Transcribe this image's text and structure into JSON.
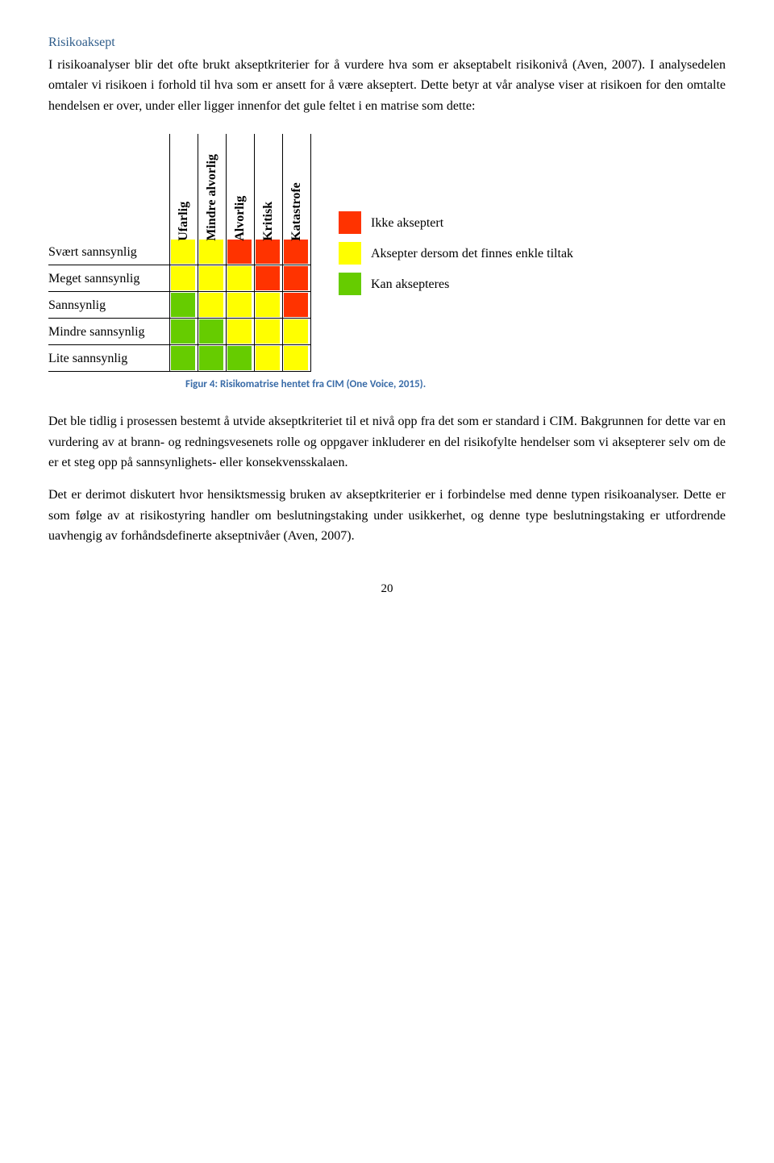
{
  "heading": "Risikoaksept",
  "paragraphs": {
    "p1": "I risikoanalyser blir det ofte brukt akseptkriterier for å vurdere hva som er akseptabelt risikonivå (Aven, 2007). I analysedelen omtaler vi risikoen i forhold til hva som er ansett for å være akseptert. Dette betyr at vår analyse viser at risikoen for den omtalte hendelsen er over, under eller ligger innenfor det gule feltet i en matrise som dette:",
    "p2": "Det ble tidlig i prosessen bestemt å utvide akseptkriteriet til et nivå opp fra det som er standard i CIM. Bakgrunnen for dette var en vurdering av at brann- og redningsvesenets rolle og oppgaver inkluderer en del risikofylte hendelser som vi aksepterer selv om de er et steg opp på sannsynlighets- eller konsekvensskalaen.",
    "p3": "Det er derimot diskutert hvor hensiktsmessig bruken av akseptkriterier er i forbindelse med denne typen risikoanalyser. Dette er som følge av at risikostyring handler om beslutningstaking under usikkerhet, og denne type beslutningstaking er utfordrende uavhengig av forhåndsdefinerte akseptnivåer (Aven, 2007)."
  },
  "matrix": {
    "colors": {
      "red": "#ff3300",
      "yellow": "#ffff00",
      "green": "#66cc00"
    },
    "col_headers": [
      "Ufarlig",
      "Mindre alvorlig",
      "Alvorlig",
      "Kritisk",
      "Katastrofe"
    ],
    "row_labels": [
      "Svært sannsynlig",
      "Meget sannsynlig",
      "Sannsynlig",
      "Mindre sannsynlig",
      "Lite sannsynlig"
    ],
    "cells": [
      [
        "yellow",
        "yellow",
        "red",
        "red",
        "red"
      ],
      [
        "yellow",
        "yellow",
        "yellow",
        "red",
        "red"
      ],
      [
        "green",
        "yellow",
        "yellow",
        "yellow",
        "red"
      ],
      [
        "green",
        "green",
        "yellow",
        "yellow",
        "yellow"
      ],
      [
        "green",
        "green",
        "green",
        "yellow",
        "yellow"
      ]
    ]
  },
  "legend": {
    "items": [
      {
        "color": "red",
        "label": "Ikke akseptert"
      },
      {
        "color": "yellow",
        "label": "Aksepter dersom det finnes enkle tiltak"
      },
      {
        "color": "green",
        "label": "Kan aksepteres"
      }
    ]
  },
  "caption": "Figur 4: Risikomatrise hentet fra CIM (One Voice, 2015).",
  "page_number": "20"
}
